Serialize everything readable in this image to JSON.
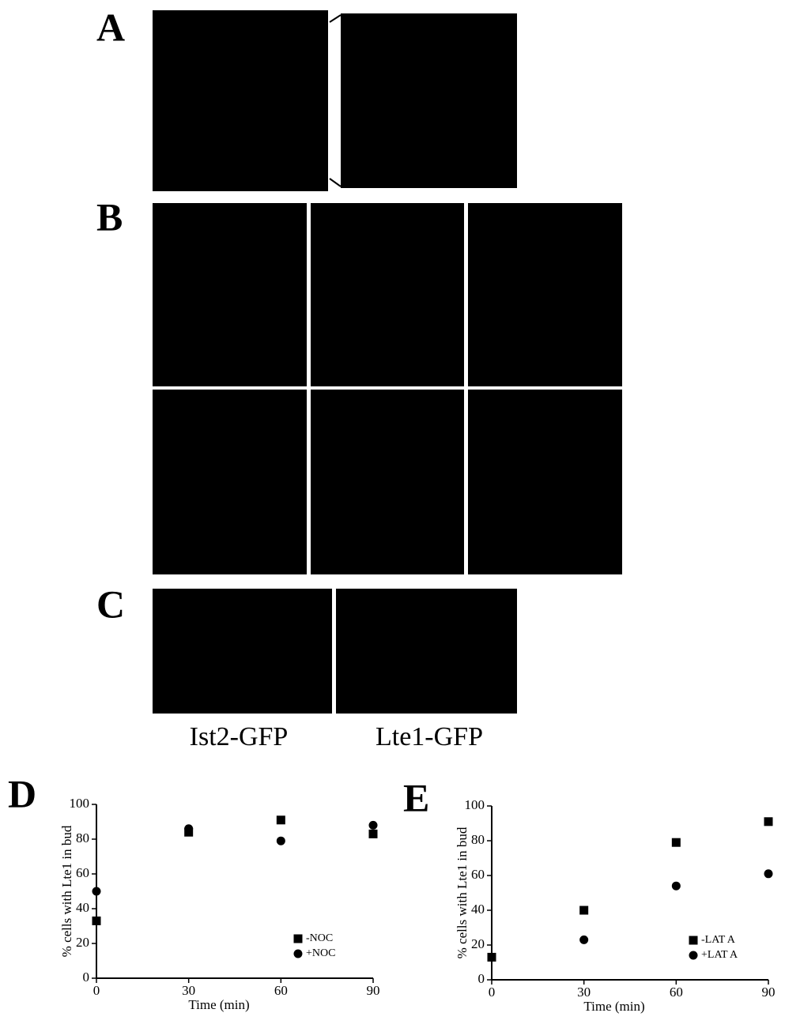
{
  "panels": [
    "A",
    "B",
    "C",
    "D",
    "E"
  ],
  "captions": [
    "Ist2-GFP",
    "Lte1-GFP"
  ],
  "chart_data": [
    {
      "type": "scatter",
      "xlabel": "Time (min)",
      "ylabel": "% cells with Lte1 in bud",
      "xlim": [
        0,
        90
      ],
      "xticks": [
        0,
        30,
        60,
        90
      ],
      "ylim": [
        0,
        100
      ],
      "yticks": [
        0,
        20,
        40,
        60,
        80,
        100
      ],
      "legend": "lower right",
      "series": [
        {
          "name": "-NOC",
          "color": "#000000",
          "marker": "square",
          "x": [
            0,
            30,
            60,
            90
          ],
          "values": [
            33,
            84,
            91,
            83
          ]
        },
        {
          "name": "+NOC",
          "color": "#000000",
          "marker": "circle",
          "x": [
            0,
            30,
            60,
            90
          ],
          "values": [
            50,
            86,
            79,
            88
          ]
        }
      ]
    },
    {
      "type": "scatter",
      "xlabel": "Time (min)",
      "ylabel": "% cells with Lte1 in bud",
      "xlim": [
        0,
        90
      ],
      "xticks": [
        0,
        30,
        60,
        90
      ],
      "ylim": [
        0,
        100
      ],
      "yticks": [
        0,
        20,
        40,
        60,
        80,
        100
      ],
      "legend": "lower right",
      "series": [
        {
          "name": "-LAT A",
          "color": "#000000",
          "marker": "square",
          "x": [
            0,
            30,
            60,
            90
          ],
          "values": [
            13,
            40,
            79,
            91
          ]
        },
        {
          "name": "+LAT A",
          "color": "#000000",
          "marker": "circle",
          "x": [
            0,
            30,
            60,
            90
          ],
          "values": [
            13,
            23,
            54,
            61
          ]
        }
      ]
    }
  ]
}
